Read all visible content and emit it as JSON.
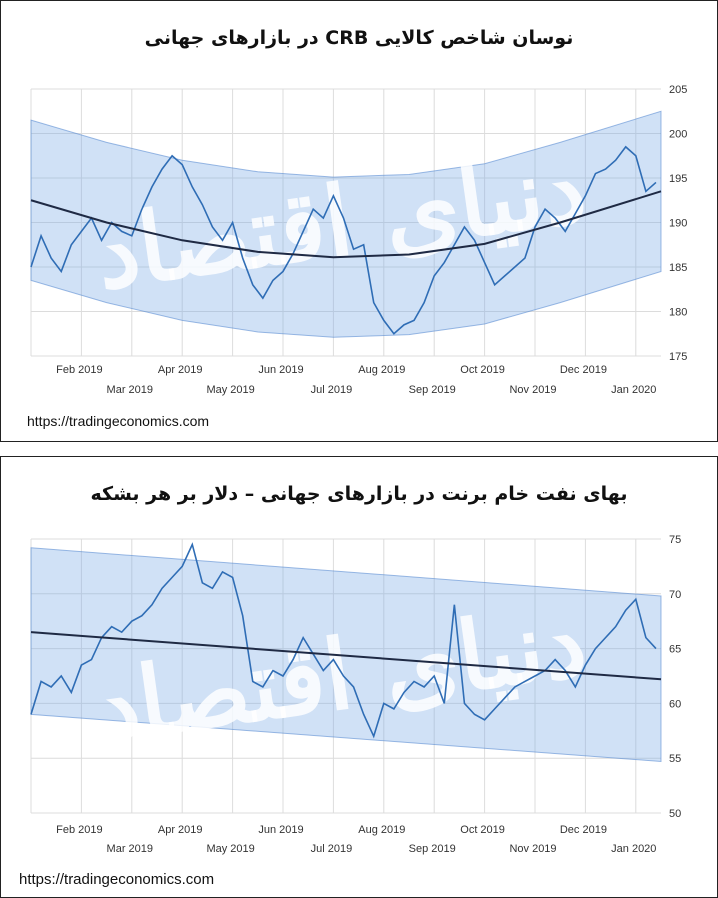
{
  "chart_data": [
    {
      "type": "line",
      "title": "نوسان شاخص کالایی CRB در بازارهای جهانی",
      "source": "https://tradingeconomics.com",
      "watermark": "دنیای اقتصاد",
      "ylim": [
        175,
        205
      ],
      "yticks": [
        175,
        180,
        185,
        190,
        195,
        200,
        205
      ],
      "xticks_top": [
        "Feb 2019",
        "Apr 2019",
        "Jun 2019",
        "Aug 2019",
        "Oct 2019",
        "Dec 2019"
      ],
      "xticks_bottom": [
        "Mar 2019",
        "May 2019",
        "Jul 2019",
        "Sep 2019",
        "Nov 2019",
        "Jan 2020"
      ],
      "x_range": [
        0,
        12.5
      ],
      "series": [
        {
          "name": "CRB Index",
          "x": [
            0,
            0.2,
            0.4,
            0.6,
            0.8,
            1.0,
            1.2,
            1.4,
            1.6,
            1.8,
            2.0,
            2.2,
            2.4,
            2.6,
            2.8,
            3.0,
            3.2,
            3.4,
            3.6,
            3.8,
            4.0,
            4.2,
            4.4,
            4.6,
            4.8,
            5.0,
            5.2,
            5.4,
            5.6,
            5.8,
            6.0,
            6.2,
            6.4,
            6.6,
            6.8,
            7.0,
            7.2,
            7.4,
            7.6,
            7.8,
            8.0,
            8.2,
            8.4,
            8.6,
            8.8,
            9.0,
            9.2,
            9.4,
            9.6,
            9.8,
            10.0,
            10.2,
            10.4,
            10.6,
            10.8,
            11.0,
            11.2,
            11.4,
            11.6,
            11.8,
            12.0,
            12.2,
            12.4
          ],
          "values": [
            185.0,
            188.5,
            186.0,
            184.5,
            187.5,
            189.0,
            190.5,
            188.0,
            190.0,
            189.0,
            188.5,
            191.5,
            194.0,
            196.0,
            197.5,
            196.5,
            194.0,
            192.0,
            189.5,
            188.0,
            190.0,
            186.0,
            183.0,
            181.5,
            183.5,
            184.5,
            186.5,
            189.0,
            191.5,
            190.5,
            193.0,
            190.5,
            187.0,
            187.5,
            181.0,
            179.0,
            177.5,
            178.5,
            179.0,
            181.0,
            184.0,
            185.5,
            187.5,
            189.5,
            188.0,
            185.5,
            183.0,
            184.0,
            185.0,
            186.0,
            189.5,
            191.5,
            190.5,
            189.0,
            191.0,
            193.0,
            195.5,
            196.0,
            197.0,
            198.5,
            197.5,
            193.5,
            194.5
          ]
        },
        {
          "name": "Trend",
          "x": [
            0,
            1.5,
            3,
            4.5,
            6,
            7.5,
            9,
            10.5,
            12.5
          ],
          "values": [
            192.5,
            190.0,
            188.0,
            186.7,
            186.1,
            186.4,
            187.6,
            190.0,
            193.5
          ]
        },
        {
          "name": "Band upper",
          "x": [
            0,
            1.5,
            3,
            4.5,
            6,
            7.5,
            9,
            10.5,
            12.5
          ],
          "values": [
            201.5,
            199.0,
            197.0,
            195.7,
            195.1,
            195.4,
            196.6,
            199.0,
            202.5
          ]
        },
        {
          "name": "Band lower",
          "x": [
            0,
            1.5,
            3,
            4.5,
            6,
            7.5,
            9,
            10.5,
            12.5
          ],
          "values": [
            183.5,
            181.0,
            179.0,
            177.7,
            177.1,
            177.4,
            178.6,
            181.0,
            184.5
          ]
        }
      ]
    },
    {
      "type": "line",
      "title": "بهای نفت خام برنت در بازارهای جهانی – دلار بر هر بشکه",
      "source": "https://tradingeconomics.com",
      "watermark": "دنیای اقتصاد",
      "ylim": [
        50,
        75
      ],
      "yticks": [
        50,
        55,
        60,
        65,
        70,
        75
      ],
      "xticks_top": [
        "Feb 2019",
        "Apr 2019",
        "Jun 2019",
        "Aug 2019",
        "Oct 2019",
        "Dec 2019"
      ],
      "xticks_bottom": [
        "Mar 2019",
        "May 2019",
        "Jul 2019",
        "Sep 2019",
        "Nov 2019",
        "Jan 2020"
      ],
      "x_range": [
        0,
        12.5
      ],
      "series": [
        {
          "name": "Brent",
          "x": [
            0,
            0.2,
            0.4,
            0.6,
            0.8,
            1.0,
            1.2,
            1.4,
            1.6,
            1.8,
            2.0,
            2.2,
            2.4,
            2.6,
            2.8,
            3.0,
            3.2,
            3.4,
            3.6,
            3.8,
            4.0,
            4.2,
            4.4,
            4.6,
            4.8,
            5.0,
            5.2,
            5.4,
            5.6,
            5.8,
            6.0,
            6.2,
            6.4,
            6.6,
            6.8,
            7.0,
            7.2,
            7.4,
            7.6,
            7.8,
            8.0,
            8.2,
            8.4,
            8.6,
            8.8,
            9.0,
            9.2,
            9.4,
            9.6,
            9.8,
            10.0,
            10.2,
            10.4,
            10.6,
            10.8,
            11.0,
            11.2,
            11.4,
            11.6,
            11.8,
            12.0,
            12.2,
            12.4
          ],
          "values": [
            59.0,
            62.0,
            61.5,
            62.5,
            61.0,
            63.5,
            64.0,
            66.0,
            67.0,
            66.5,
            67.5,
            68.0,
            69.0,
            70.5,
            71.5,
            72.5,
            74.5,
            71.0,
            70.5,
            72.0,
            71.5,
            68.0,
            62.0,
            61.5,
            63.0,
            62.5,
            64.0,
            66.0,
            64.5,
            63.0,
            64.0,
            62.5,
            61.5,
            59.0,
            57.0,
            60.0,
            59.5,
            61.0,
            62.0,
            61.5,
            62.5,
            60.0,
            69.0,
            60.0,
            59.0,
            58.5,
            59.5,
            60.5,
            61.5,
            62.0,
            62.5,
            63.0,
            64.0,
            63.0,
            61.5,
            63.5,
            65.0,
            66.0,
            67.0,
            68.5,
            69.5,
            66.0,
            65.0
          ]
        },
        {
          "name": "Trend",
          "x": [
            0,
            12.5
          ],
          "values": [
            66.5,
            62.2
          ]
        },
        {
          "name": "Band upper",
          "x": [
            0,
            12.5
          ],
          "values": [
            74.2,
            69.8
          ]
        },
        {
          "name": "Band lower",
          "x": [
            0,
            12.5
          ],
          "values": [
            59.0,
            54.7
          ]
        }
      ]
    }
  ]
}
